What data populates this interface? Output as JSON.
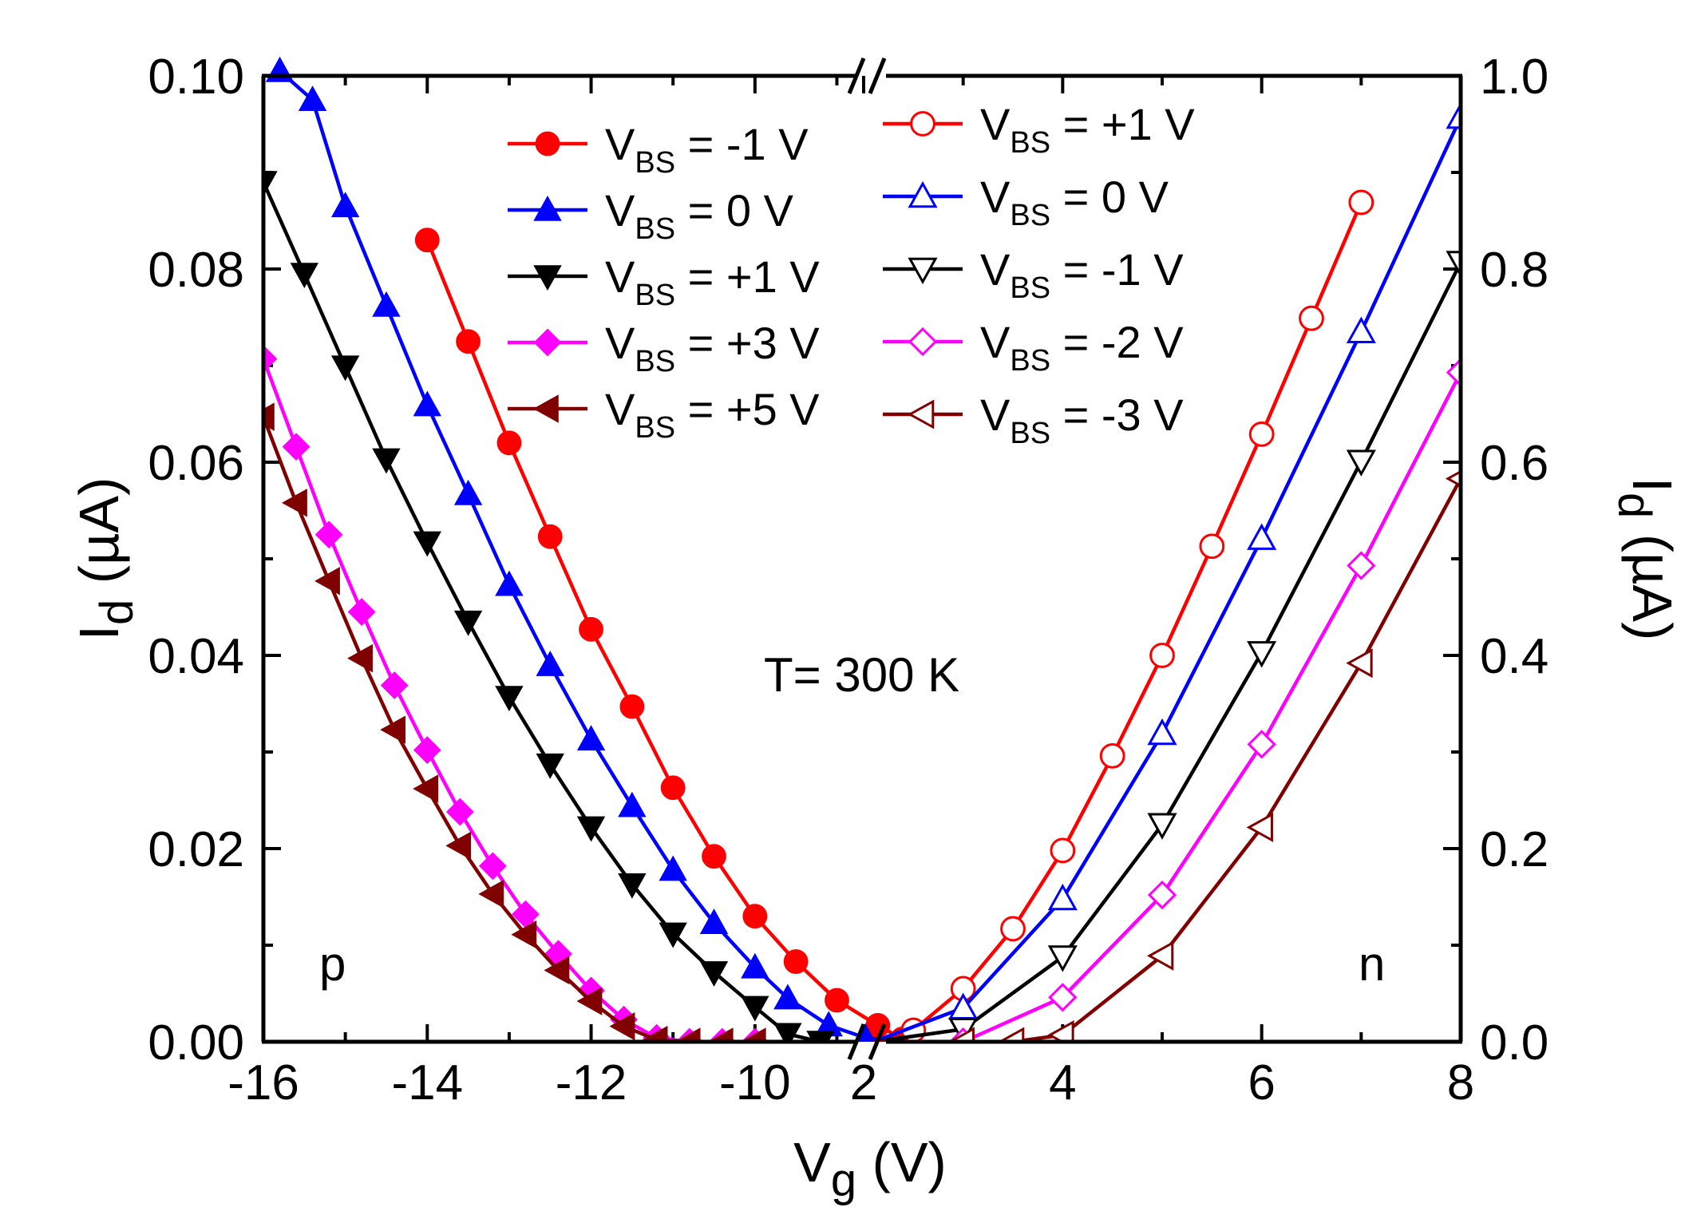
{
  "chart_data": {
    "type": "line",
    "title": "",
    "annotation": "T= 300 K",
    "region_labels": {
      "left": "p",
      "right": "n"
    },
    "xlabel": {
      "main": "V",
      "sub": "g",
      "unit": " (V)"
    },
    "ylabel_left": {
      "main": "I",
      "sub": "d",
      "unit": " (µA)"
    },
    "ylabel_right": {
      "main": "I",
      "sub": "d",
      "unit": " (µA)"
    },
    "x_left_segment": {
      "range": [
        -16,
        -8.8
      ],
      "ticks": [
        -16,
        -14,
        -12,
        -10
      ],
      "tick_labels": [
        "-16",
        "-14",
        "-12",
        "-10"
      ]
    },
    "x_right_segment": {
      "range": [
        2,
        8
      ],
      "ticks": [
        2,
        4,
        6,
        8
      ],
      "tick_labels": [
        "2",
        "4",
        "6",
        "8"
      ]
    },
    "ylim_left": [
      0,
      0.1
    ],
    "yticks_left": [
      "0.00",
      "0.02",
      "0.04",
      "0.06",
      "0.08",
      "0.10"
    ],
    "ylim_right": [
      0,
      1.0
    ],
    "yticks_right": [
      "0.0",
      "0.2",
      "0.4",
      "0.6",
      "0.8",
      "1.0"
    ],
    "series_left": [
      {
        "name": "V_BS = -1 V",
        "label_main": "V",
        "label_sub": "BS",
        "label_rest": " = -1 V",
        "color": "#ff0000",
        "marker": "circle",
        "filled": true,
        "x": [
          -14,
          -13.5,
          -13,
          -12.5,
          -12,
          -11.5,
          -11,
          -10.5,
          -10,
          -9.5,
          -9,
          -8.5,
          -8.2
        ],
        "y": [
          0.083,
          0.0725,
          0.062,
          0.0523,
          0.0427,
          0.0347,
          0.0263,
          0.0192,
          0.013,
          0.0083,
          0.0043,
          0.0017,
          0.0003
        ]
      },
      {
        "name": "V_BS = 0 V",
        "label_main": "V",
        "label_sub": "BS",
        "label_rest": " = 0 V",
        "color": "#0000ff",
        "marker": "triangle-up",
        "filled": true,
        "x": [
          -15.8,
          -15.4,
          -15,
          -14.5,
          -14,
          -13.5,
          -13,
          -12.5,
          -12,
          -11.5,
          -11,
          -10.5,
          -10,
          -9.6,
          -9.1,
          -8.65,
          -8.2
        ],
        "y": [
          0.1005,
          0.0975,
          0.0865,
          0.0762,
          0.0659,
          0.0567,
          0.0473,
          0.039,
          0.0313,
          0.0244,
          0.0178,
          0.0123,
          0.0077,
          0.0045,
          0.0017,
          0.0004,
          0.0
        ]
      },
      {
        "name": "V_BS = +1 V",
        "label_main": "V",
        "label_sub": "BS",
        "label_rest": " = +1 V",
        "color": "#000000",
        "marker": "triangle-down",
        "filled": true,
        "x": [
          -16,
          -15.5,
          -15,
          -14.5,
          -14,
          -13.5,
          -13,
          -12.5,
          -12,
          -11.5,
          -11,
          -10.5,
          -10,
          -9.6,
          -9.2
        ],
        "y": [
          0.089,
          0.0795,
          0.0699,
          0.0603,
          0.0517,
          0.0435,
          0.0357,
          0.0287,
          0.0222,
          0.0163,
          0.0112,
          0.0072,
          0.0036,
          0.0008,
          0.0
        ]
      },
      {
        "name": "V_BS = +3 V",
        "label_main": "V",
        "label_sub": "BS",
        "label_rest": " = +3 V",
        "color": "#ff00ff",
        "marker": "diamond",
        "filled": true,
        "x": [
          -16,
          -15.6,
          -15.2,
          -14.8,
          -14.4,
          -14,
          -13.6,
          -13.2,
          -12.8,
          -12.4,
          -12,
          -11.6,
          -11.2,
          -10.8,
          -10.4,
          -10
        ],
        "y": [
          0.0707,
          0.0616,
          0.0525,
          0.0445,
          0.0369,
          0.0302,
          0.0238,
          0.0182,
          0.0132,
          0.0091,
          0.0053,
          0.0023,
          0.0004,
          0.0,
          0.0,
          0.0
        ]
      },
      {
        "name": "V_BS = +5 V",
        "label_main": "V",
        "label_sub": "BS",
        "label_rest": " = +5 V",
        "color": "#800000",
        "marker": "triangle-left",
        "filled": true,
        "x": [
          -16,
          -15.6,
          -15.2,
          -14.8,
          -14.4,
          -14,
          -13.6,
          -13.2,
          -12.8,
          -12.4,
          -12,
          -11.6,
          -11.2,
          -10.8,
          -10.4,
          -10
        ],
        "y": [
          0.0647,
          0.0558,
          0.0477,
          0.0397,
          0.0323,
          0.0262,
          0.0203,
          0.0153,
          0.0111,
          0.0074,
          0.0042,
          0.0016,
          0.0002,
          0.0,
          0.0,
          0.0
        ]
      }
    ],
    "series_right": [
      {
        "name": "V_BS = +1 V",
        "label_main": "V",
        "label_sub": "BS",
        "label_rest": " = +1 V",
        "color": "#ff0000",
        "marker": "circle",
        "filled": false,
        "x": [
          2.1,
          2.5,
          3,
          3.5,
          4,
          4.5,
          5,
          5.5,
          6,
          6.5,
          7
        ],
        "y": [
          0.0,
          0.012,
          0.055,
          0.117,
          0.198,
          0.296,
          0.4,
          0.513,
          0.629,
          0.749,
          0.869
        ]
      },
      {
        "name": "V_BS = 0 V",
        "label_main": "V",
        "label_sub": "BS",
        "label_rest": " = 0 V",
        "color": "#0000ff",
        "marker": "triangle-up",
        "filled": false,
        "x": [
          2.1,
          3,
          4,
          5,
          6,
          7,
          8
        ],
        "y": [
          0.0,
          0.035,
          0.148,
          0.319,
          0.521,
          0.735,
          0.957
        ]
      },
      {
        "name": "V_BS = -1 V",
        "label_main": "V",
        "label_sub": "BS",
        "label_rest": " = -1 V",
        "color": "#000000",
        "marker": "triangle-down",
        "filled": false,
        "x": [
          2.1,
          3,
          4,
          5,
          6,
          7,
          8
        ],
        "y": [
          0.0,
          0.013,
          0.088,
          0.225,
          0.403,
          0.601,
          0.807
        ]
      },
      {
        "name": "V_BS = -2 V",
        "label_main": "V",
        "label_sub": "BS",
        "label_rest": " = -2 V",
        "color": "#ff00ff",
        "marker": "diamond",
        "filled": false,
        "x": [
          2.1,
          3,
          4,
          5,
          6,
          7,
          8
        ],
        "y": [
          0.0,
          0.0,
          0.046,
          0.152,
          0.308,
          0.493,
          0.693
        ]
      },
      {
        "name": "V_BS = -3 V",
        "label_main": "V",
        "label_sub": "BS",
        "label_rest": " = -3 V",
        "color": "#800000",
        "marker": "triangle-left",
        "filled": false,
        "x": [
          2.1,
          3,
          3.5,
          4,
          5,
          6,
          7,
          8
        ],
        "y": [
          0.0,
          0.0,
          0.0,
          0.007,
          0.089,
          0.222,
          0.392,
          0.583
        ]
      }
    ]
  }
}
